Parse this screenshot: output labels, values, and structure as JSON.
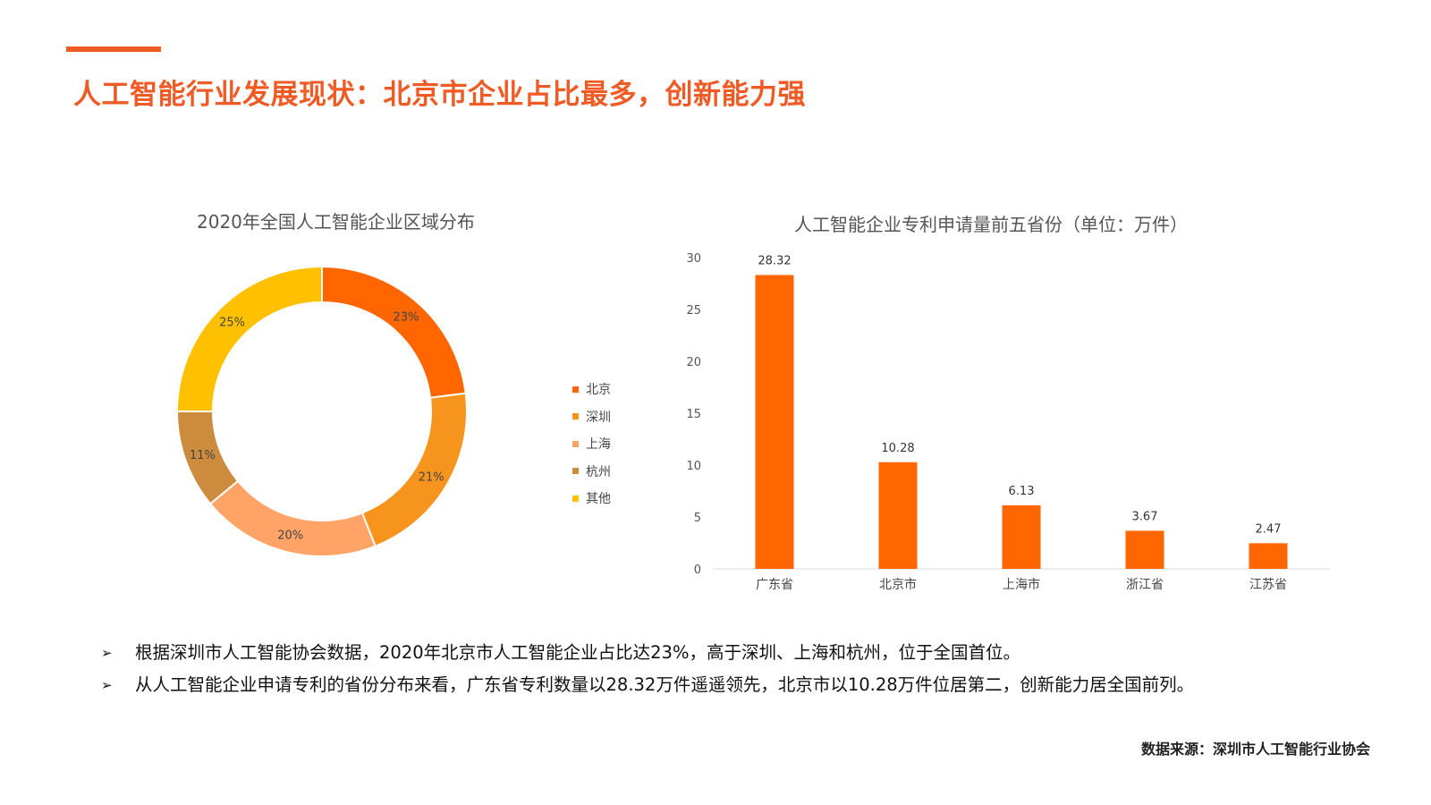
{
  "page": {
    "title": "人工智能行业发展现状：北京市企业占比最多，创新能力强",
    "accent_color": "#f05a24"
  },
  "chart_data": [
    {
      "type": "pie",
      "variant": "donut",
      "title": "2020年全国人工智能企业区域分布",
      "categories": [
        "北京",
        "深圳",
        "上海",
        "杭州",
        "其他"
      ],
      "values": [
        23,
        21,
        20,
        11,
        25
      ],
      "labels": [
        "23%",
        "21%",
        "20%",
        "11%",
        "25%"
      ],
      "colors": [
        "#ff6600",
        "#f7941d",
        "#ffa366",
        "#cc8b3d",
        "#ffc000"
      ],
      "legend": "right"
    },
    {
      "type": "bar",
      "title": "人工智能企业专利申请量前五省份（单位：万件）",
      "categories": [
        "广东省",
        "北京市",
        "上海市",
        "浙江省",
        "江苏省"
      ],
      "values": [
        28.32,
        10.28,
        6.13,
        3.67,
        2.47
      ],
      "value_labels": [
        "28.32",
        "10.28",
        "6.13",
        "3.67",
        "2.47"
      ],
      "ylim": [
        0,
        30
      ],
      "yticks": [
        "0",
        "5",
        "10",
        "15",
        "20",
        "25",
        "30"
      ],
      "bar_color": "#ff6600",
      "grid": false
    }
  ],
  "bullets": [
    "根据深圳市人工智能协会数据，2020年北京市人工智能企业占比达23%，高于深圳、上海和杭州，位于全国首位。",
    "从人工智能企业申请专利的省份分布来看，广东省专利数量以28.32万件遥遥领先，北京市以10.28万件位居第二，创新能力居全国前列。"
  ],
  "bullet_marker": "➢",
  "source": "数据来源：深圳市人工智能行业协会"
}
